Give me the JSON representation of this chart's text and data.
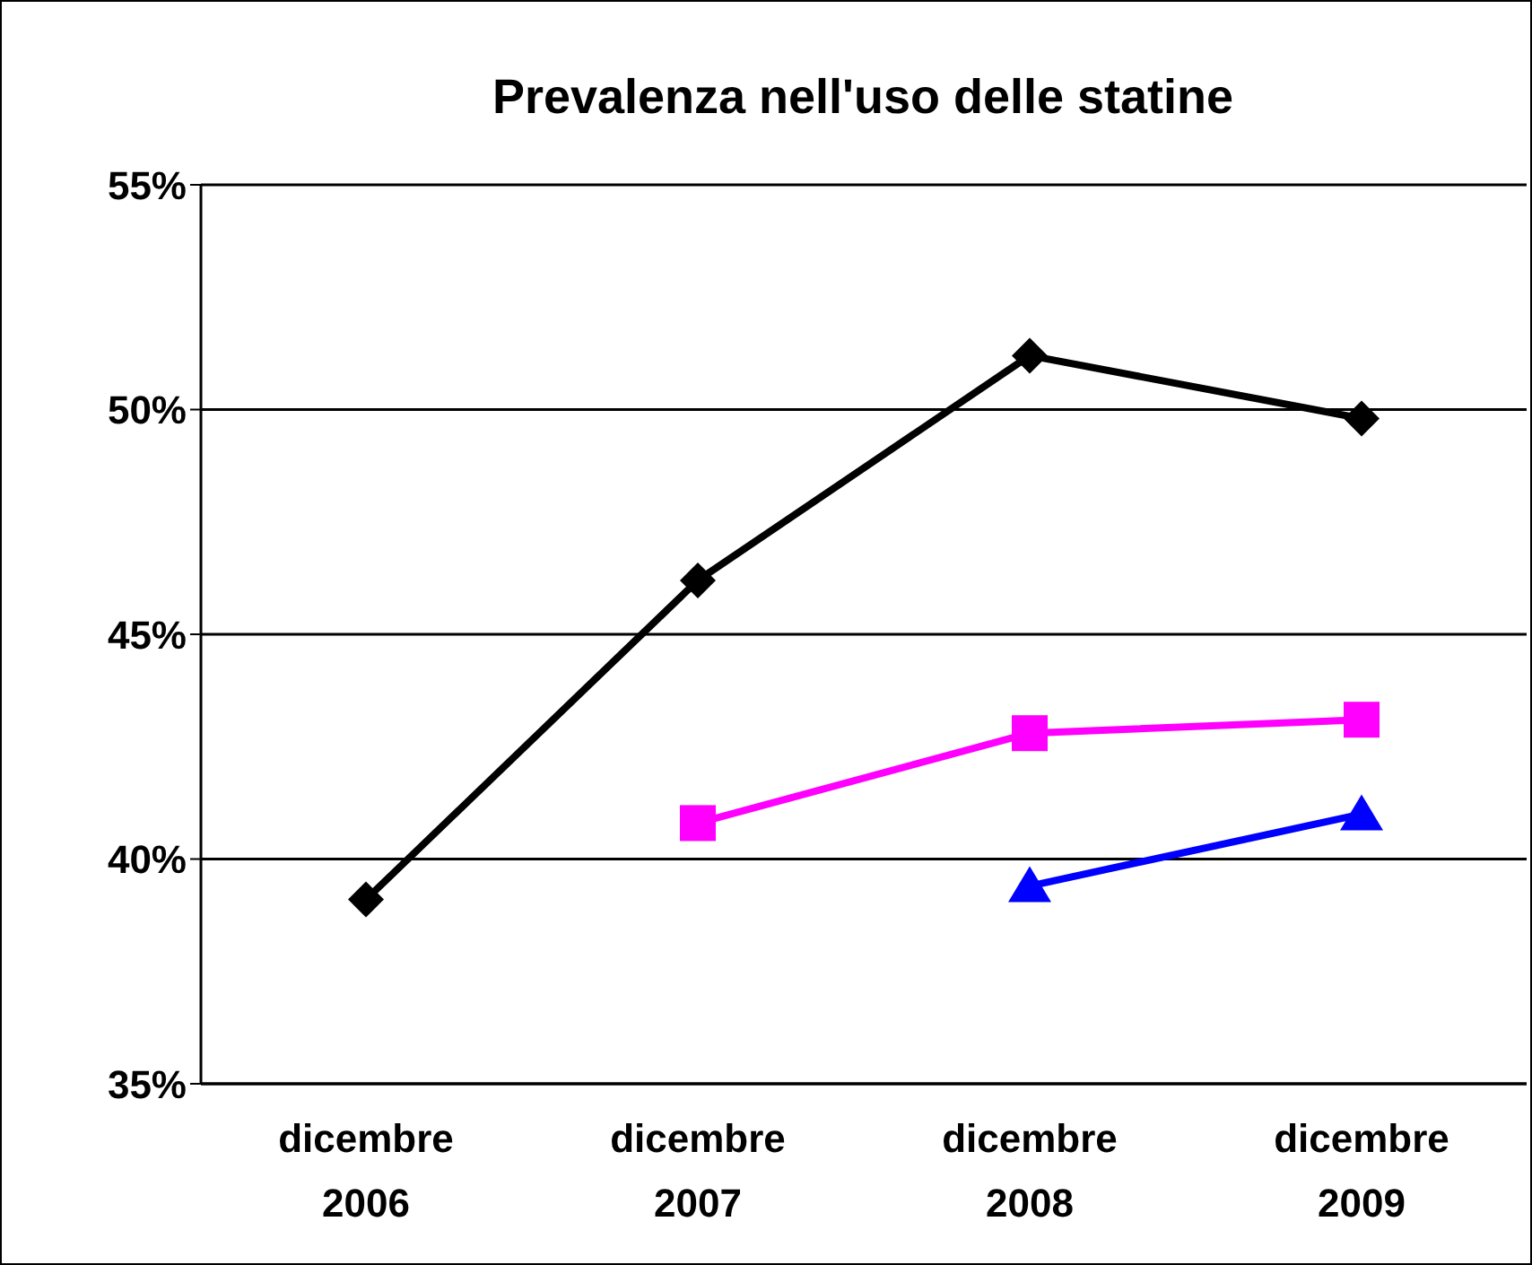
{
  "chart_data": {
    "type": "line",
    "title": "Prevalenza nell'uso delle statine",
    "categories": [
      "dicembre 2006",
      "dicembre 2007",
      "dicembre 2008",
      "dicembre 2009"
    ],
    "series": [
      {
        "color": "#000000",
        "marker": "diamond",
        "values": [
          39.1,
          46.2,
          51.2,
          49.8
        ]
      },
      {
        "color": "#ff00ff",
        "marker": "square",
        "values": [
          null,
          40.8,
          42.8,
          43.1
        ]
      },
      {
        "color": "#0000ff",
        "marker": "triangle",
        "values": [
          null,
          null,
          39.4,
          41.0
        ]
      }
    ],
    "ylim": [
      35,
      55
    ],
    "yticks": [
      {
        "value": 35,
        "label": "35%"
      },
      {
        "value": 40,
        "label": "40%"
      },
      {
        "value": 45,
        "label": "45%"
      },
      {
        "value": 50,
        "label": "50%"
      },
      {
        "value": 55,
        "label": "55%"
      }
    ],
    "grid": "y",
    "line_style": "solid"
  }
}
